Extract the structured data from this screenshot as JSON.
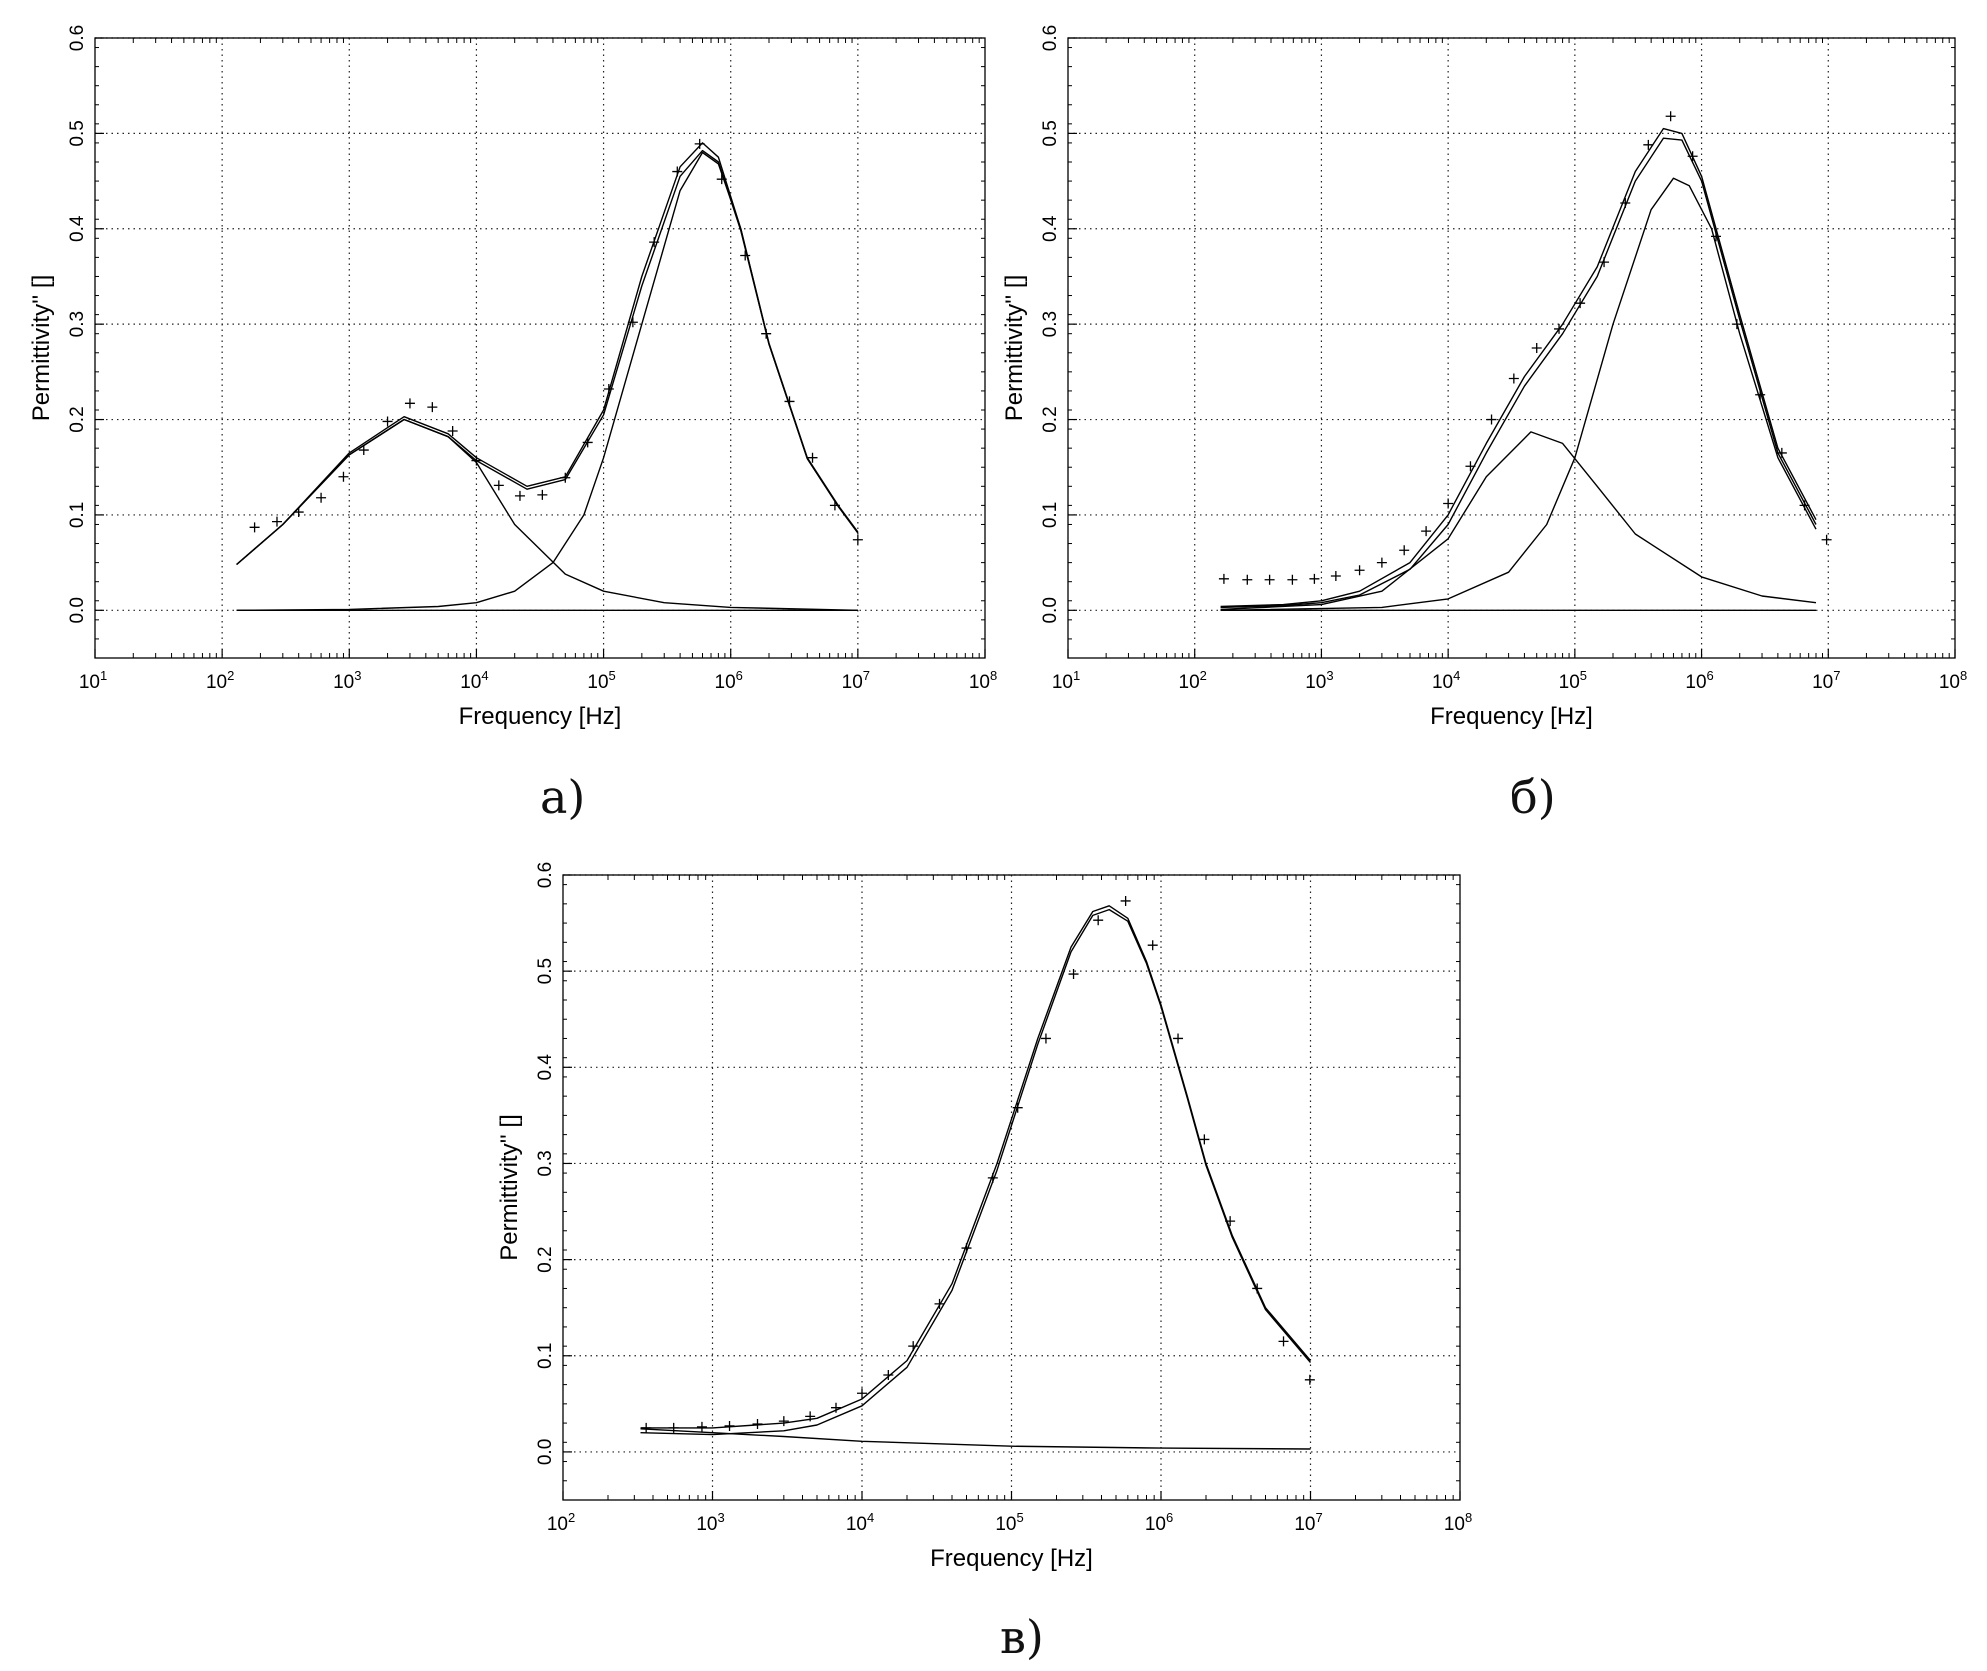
{
  "panel_labels": [
    "а)",
    "б)",
    "в)"
  ],
  "chart_data": [
    {
      "type": "scatter",
      "panel": "а)",
      "xlabel": "Frequency [Hz]",
      "ylabel": "Permittivity'' []",
      "xscale": "log",
      "xlim": [
        10,
        100000000
      ],
      "ylim": [
        -0.05,
        0.6
      ],
      "x_tick_exponents": [
        1,
        2,
        3,
        4,
        5,
        6,
        7,
        8
      ],
      "y_ticks": [
        "0.0",
        "0.1",
        "0.2",
        "0.3",
        "0.4",
        "0.5",
        "0.6"
      ],
      "grid": true,
      "legend": "none",
      "series": [
        {
          "kind": "points",
          "x": [
            180,
            270,
            400,
            600,
            900,
            1300,
            2000,
            3000,
            4500,
            6500,
            10000,
            15000,
            22000,
            33000,
            50000,
            75000,
            110000,
            170000,
            250000,
            380000,
            570000,
            850000,
            1300000,
            1900000,
            2900000,
            4400000,
            6600000,
            10000000
          ],
          "y": [
            0.087,
            0.093,
            0.103,
            0.118,
            0.14,
            0.168,
            0.198,
            0.217,
            0.213,
            0.188,
            0.157,
            0.131,
            0.12,
            0.121,
            0.139,
            0.176,
            0.232,
            0.302,
            0.386,
            0.46,
            0.489,
            0.452,
            0.372,
            0.29,
            0.219,
            0.16,
            0.11,
            0.074
          ]
        },
        {
          "kind": "curve",
          "x": [
            130,
            300,
            1000,
            2700,
            6000,
            10000,
            25000,
            50000,
            100000,
            200000,
            400000,
            600000,
            800000,
            1200000,
            2000000,
            4000000,
            7000000,
            10000000
          ],
          "y": [
            0.048,
            0.09,
            0.165,
            0.203,
            0.185,
            0.16,
            0.13,
            0.14,
            0.21,
            0.35,
            0.465,
            0.49,
            0.475,
            0.4,
            0.28,
            0.16,
            0.11,
            0.082
          ]
        },
        {
          "kind": "curve",
          "x": [
            130,
            300,
            1000,
            2700,
            6000,
            10000,
            25000,
            50000,
            100000,
            200000,
            400000,
            600000,
            800000,
            1200000,
            2000000,
            4000000,
            7000000,
            10000000
          ],
          "y": [
            0.048,
            0.09,
            0.163,
            0.2,
            0.182,
            0.157,
            0.127,
            0.137,
            0.205,
            0.34,
            0.455,
            0.482,
            0.47,
            0.398,
            0.279,
            0.159,
            0.109,
            0.081
          ]
        },
        {
          "kind": "curve",
          "x": [
            130,
            300,
            1000,
            2700,
            6000,
            10000,
            20000,
            50000,
            100000,
            300000,
            1000000,
            10000000
          ],
          "y": [
            0.048,
            0.09,
            0.163,
            0.2,
            0.182,
            0.155,
            0.09,
            0.038,
            0.02,
            0.008,
            0.003,
            0.0
          ]
        },
        {
          "kind": "curve",
          "x": [
            130,
            1000,
            5000,
            10000,
            20000,
            40000,
            70000,
            100000,
            200000,
            400000,
            600000,
            800000,
            1200000,
            2000000,
            4000000,
            7000000,
            10000000
          ],
          "y": [
            0.0,
            0.001,
            0.004,
            0.008,
            0.02,
            0.05,
            0.1,
            0.16,
            0.3,
            0.44,
            0.48,
            0.468,
            0.4,
            0.279,
            0.159,
            0.109,
            0.081
          ]
        },
        {
          "kind": "curve",
          "x": [
            130,
            10000000
          ],
          "y": [
            0.0,
            0.0
          ]
        }
      ]
    },
    {
      "type": "scatter",
      "panel": "б)",
      "xlabel": "Frequency [Hz]",
      "ylabel": "Permittivity'' []",
      "xscale": "log",
      "xlim": [
        10,
        100000000
      ],
      "ylim": [
        -0.05,
        0.6
      ],
      "x_tick_exponents": [
        1,
        2,
        3,
        4,
        5,
        6,
        7,
        8
      ],
      "y_ticks": [
        "0.0",
        "0.1",
        "0.2",
        "0.3",
        "0.4",
        "0.5",
        "0.6"
      ],
      "grid": true,
      "legend": "none",
      "series": [
        {
          "kind": "points",
          "x": [
            170,
            260,
            390,
            590,
            880,
            1300,
            2000,
            3000,
            4500,
            6700,
            10000,
            15000,
            22000,
            33000,
            50000,
            75000,
            110000,
            170000,
            250000,
            380000,
            570000,
            850000,
            1300000,
            1900000,
            2900000,
            4300000,
            6500000,
            9700000
          ],
          "y": [
            0.033,
            0.032,
            0.032,
            0.032,
            0.033,
            0.036,
            0.042,
            0.05,
            0.063,
            0.083,
            0.112,
            0.151,
            0.2,
            0.243,
            0.275,
            0.295,
            0.322,
            0.365,
            0.427,
            0.488,
            0.518,
            0.476,
            0.392,
            0.3,
            0.226,
            0.165,
            0.11,
            0.074
          ]
        },
        {
          "kind": "curve",
          "x": [
            160,
            500,
            1000,
            2000,
            5000,
            10000,
            20000,
            40000,
            80000,
            150000,
            300000,
            500000,
            700000,
            1000000,
            2000000,
            4000000,
            8000000
          ],
          "y": [
            0.004,
            0.006,
            0.01,
            0.02,
            0.05,
            0.1,
            0.175,
            0.245,
            0.3,
            0.36,
            0.46,
            0.505,
            0.5,
            0.455,
            0.31,
            0.17,
            0.095
          ]
        },
        {
          "kind": "curve",
          "x": [
            160,
            500,
            1000,
            2000,
            5000,
            10000,
            20000,
            40000,
            80000,
            150000,
            300000,
            500000,
            700000,
            1000000,
            2000000,
            4000000,
            8000000
          ],
          "y": [
            0.003,
            0.005,
            0.008,
            0.016,
            0.043,
            0.09,
            0.165,
            0.235,
            0.29,
            0.35,
            0.45,
            0.495,
            0.493,
            0.45,
            0.305,
            0.165,
            0.09
          ]
        },
        {
          "kind": "curve",
          "x": [
            160,
            1000,
            3000,
            10000,
            20000,
            45000,
            80000,
            150000,
            300000,
            1000000,
            3000000,
            8000000
          ],
          "y": [
            0.001,
            0.006,
            0.02,
            0.075,
            0.14,
            0.187,
            0.175,
            0.13,
            0.08,
            0.035,
            0.015,
            0.008
          ]
        },
        {
          "kind": "curve",
          "x": [
            160,
            3000,
            10000,
            30000,
            60000,
            100000,
            200000,
            400000,
            600000,
            800000,
            1200000,
            2000000,
            4000000,
            8000000
          ],
          "y": [
            0.0,
            0.003,
            0.012,
            0.04,
            0.09,
            0.16,
            0.3,
            0.42,
            0.453,
            0.445,
            0.4,
            0.29,
            0.16,
            0.085
          ]
        },
        {
          "kind": "curve",
          "x": [
            160,
            8000000
          ],
          "y": [
            0.0,
            0.0
          ]
        }
      ]
    },
    {
      "type": "scatter",
      "panel": "в)",
      "xlabel": "Frequency [Hz]",
      "ylabel": "Permittivity'' []",
      "xscale": "log",
      "xlim": [
        100,
        100000000
      ],
      "ylim": [
        -0.05,
        0.6
      ],
      "x_tick_exponents": [
        2,
        3,
        4,
        5,
        6,
        7,
        8
      ],
      "y_ticks": [
        "0.0",
        "0.1",
        "0.2",
        "0.3",
        "0.4",
        "0.5",
        "0.6"
      ],
      "grid": true,
      "legend": "none",
      "series": [
        {
          "kind": "points",
          "x": [
            360,
            550,
            850,
            1300,
            2000,
            3000,
            4500,
            6700,
            10000,
            15000,
            22000,
            33000,
            50000,
            75000,
            110000,
            170000,
            260000,
            380000,
            580000,
            880000,
            1300000,
            1950000,
            2900000,
            4400000,
            6600000,
            9900000
          ],
          "y": [
            0.025,
            0.025,
            0.026,
            0.027,
            0.029,
            0.032,
            0.037,
            0.046,
            0.061,
            0.08,
            0.11,
            0.154,
            0.212,
            0.285,
            0.358,
            0.43,
            0.497,
            0.553,
            0.573,
            0.527,
            0.43,
            0.325,
            0.24,
            0.17,
            0.115,
            0.075
          ]
        },
        {
          "kind": "curve",
          "x": [
            330,
            1000,
            3000,
            5000,
            10000,
            20000,
            40000,
            80000,
            150000,
            250000,
            350000,
            450000,
            600000,
            800000,
            1000000,
            1500000,
            2000000,
            3000000,
            5000000,
            10000000
          ],
          "y": [
            0.025,
            0.025,
            0.03,
            0.035,
            0.055,
            0.095,
            0.175,
            0.3,
            0.43,
            0.525,
            0.562,
            0.568,
            0.555,
            0.51,
            0.465,
            0.37,
            0.3,
            0.225,
            0.15,
            0.095
          ]
        },
        {
          "kind": "curve",
          "x": [
            330,
            1000,
            3000,
            5000,
            10000,
            20000,
            40000,
            80000,
            150000,
            250000,
            350000,
            450000,
            600000,
            800000,
            1000000,
            1500000,
            2000000,
            3000000,
            5000000,
            10000000
          ],
          "y": [
            0.02,
            0.018,
            0.022,
            0.028,
            0.048,
            0.088,
            0.168,
            0.293,
            0.424,
            0.52,
            0.558,
            0.564,
            0.552,
            0.508,
            0.463,
            0.368,
            0.298,
            0.223,
            0.148,
            0.093
          ]
        },
        {
          "kind": "curve",
          "x": [
            330,
            1000,
            3000,
            10000,
            100000,
            1000000,
            10000000
          ],
          "y": [
            0.024,
            0.02,
            0.016,
            0.011,
            0.006,
            0.004,
            0.003
          ]
        }
      ]
    }
  ]
}
